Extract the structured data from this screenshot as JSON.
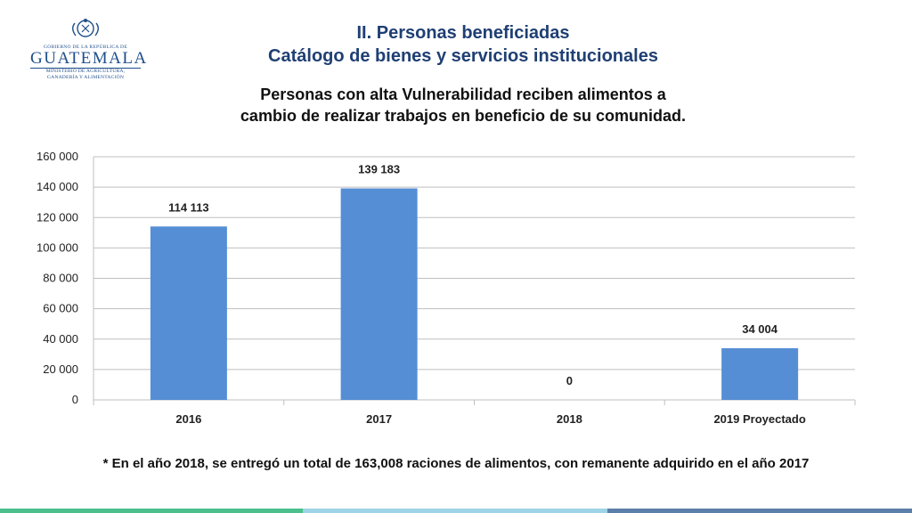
{
  "logo": {
    "top_text": "GOBIERNO DE LA REPÚBLICA DE",
    "main_text": "GUATEMALA",
    "sub_line1": "MINISTERIO DE AGRICULTURA,",
    "sub_line2": "GANADERÍA Y ALIMENTACIÓN"
  },
  "header": {
    "title_line1": "II. Personas beneficiadas",
    "title_line2": "Catálogo de bienes y servicios institucionales"
  },
  "subtitle": {
    "line1": "Personas con alta Vulnerabilidad reciben alimentos a",
    "line2": "cambio de realizar trabajos en beneficio de su comunidad."
  },
  "chart_data": {
    "type": "bar",
    "categories": [
      "2016",
      "2017",
      "2018",
      "2019 Proyectado"
    ],
    "values": [
      114113,
      139183,
      0,
      34004
    ],
    "data_labels": [
      "114 113",
      "139 183",
      "0",
      "34 004"
    ],
    "y_ticks": [
      0,
      20000,
      40000,
      60000,
      80000,
      100000,
      120000,
      140000,
      160000
    ],
    "y_tick_labels": [
      "0",
      "20 000",
      "40 000",
      "60 000",
      "80 000",
      "100 000",
      "120 000",
      "140 000",
      "160 000"
    ],
    "ylim": [
      0,
      160000
    ],
    "grid": true,
    "legend": "none",
    "bar_color": "#558ed5"
  },
  "note": "* En el año 2018, se entregó un total de 163,008 raciones de alimentos, con remanente adquirido en el año 2017",
  "colors": {
    "title": "#1f3f73",
    "bottom_bar": [
      "#4bbf8c",
      "#9fd4e6",
      "#5b7fa8"
    ]
  }
}
